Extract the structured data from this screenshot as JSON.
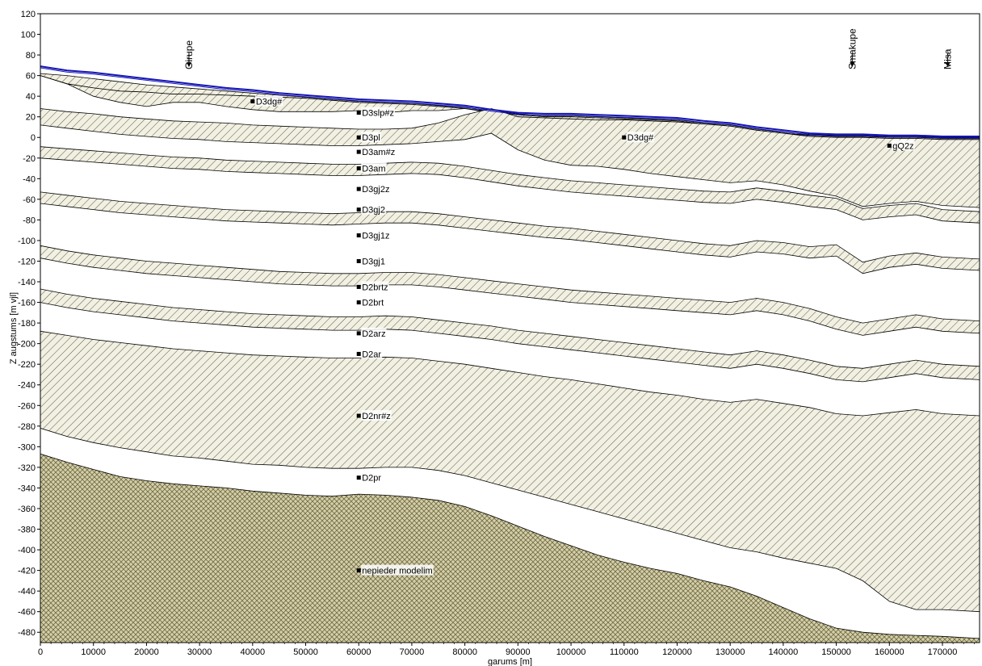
{
  "chart_data": {
    "type": "area",
    "title": "",
    "xlabel": "garums [m]",
    "ylabel": "Z augstums [m vjl]",
    "xlim": [
      0,
      177000
    ],
    "ylim": [
      -490,
      120
    ],
    "x_ticks": [
      0,
      10000,
      20000,
      30000,
      40000,
      50000,
      60000,
      70000,
      80000,
      90000,
      100000,
      110000,
      120000,
      130000,
      140000,
      150000,
      160000,
      170000
    ],
    "x_tick_labels": [
      "0",
      "10000",
      "20000",
      "30000",
      "40000",
      "50000",
      "60000",
      "70000",
      "80000",
      "90000",
      "100000",
      "110000",
      "120000",
      "130000",
      "140000",
      "150000",
      "160000",
      "170000"
    ],
    "y_ticks": [
      120,
      100,
      80,
      60,
      40,
      20,
      0,
      -20,
      -40,
      -60,
      -80,
      -100,
      -120,
      -140,
      -160,
      -180,
      -200,
      -220,
      -240,
      -260,
      -280,
      -300,
      -320,
      -340,
      -360,
      -380,
      -400,
      -420,
      -440,
      -460,
      -480
    ],
    "y_tick_labels": [
      "120",
      "100",
      "80",
      "60",
      "40",
      "20",
      "0",
      "-20",
      "-40",
      "-60",
      "-80",
      "-100",
      "-120",
      "-140",
      "-160",
      "-180",
      "-200",
      "-220",
      "-240",
      "-260",
      "-280",
      "-300",
      "-320",
      "-340",
      "-360",
      "-380",
      "-400",
      "-420",
      "-440",
      "-460",
      "-480"
    ],
    "grid": false,
    "colors": {
      "surface_line": "#1414b4",
      "layer_fill": "#f2f0e0",
      "hatch_line": "#555555",
      "crosshatch_fill": "#c6c197",
      "outline": "#000000"
    },
    "x": [
      0,
      5000,
      10000,
      15000,
      20000,
      25000,
      30000,
      35000,
      40000,
      45000,
      50000,
      55000,
      60000,
      65000,
      70000,
      75000,
      80000,
      85000,
      90000,
      95000,
      100000,
      105000,
      110000,
      115000,
      120000,
      125000,
      130000,
      135000,
      140000,
      145000,
      150000,
      155000,
      160000,
      165000,
      170000,
      177000
    ],
    "surface": {
      "name": "terrain surface",
      "values": [
        69,
        65,
        63,
        60,
        57,
        54,
        51,
        48,
        46,
        43,
        41,
        39,
        37,
        36,
        35,
        33,
        31,
        27,
        24,
        23,
        23,
        22,
        21,
        20,
        19,
        16,
        14,
        10,
        7,
        4,
        3,
        3,
        2,
        2,
        1,
        1
      ]
    },
    "hatched_layers": [
      {
        "name": "D3dg#",
        "top": [
          62,
          60,
          57,
          54,
          51,
          49,
          47,
          45,
          43,
          41,
          39,
          37,
          35,
          34,
          33,
          31,
          29,
          26,
          23,
          21,
          21,
          20,
          19,
          18,
          17,
          14,
          12,
          8,
          5,
          3,
          2,
          2,
          1,
          1,
          0,
          0
        ],
        "bottom": [
          60,
          52,
          48,
          45,
          44,
          42,
          42,
          41,
          40,
          39,
          38,
          36,
          34,
          33,
          32,
          30,
          28,
          25,
          22,
          20,
          20,
          19,
          18,
          17,
          16,
          13,
          11,
          7,
          4,
          2,
          1,
          1,
          0,
          0,
          -1,
          -1
        ]
      },
      {
        "name": "D3slp#z",
        "top": [
          60,
          52,
          48,
          45,
          44,
          42,
          42,
          41,
          40,
          39,
          38,
          36,
          34,
          33,
          32,
          30,
          28,
          25,
          22,
          20,
          20,
          19,
          18,
          17,
          16,
          13,
          11,
          7,
          4,
          2,
          1,
          1,
          0,
          0,
          -1,
          -1
        ],
        "bottom": [
          60,
          52,
          40,
          34,
          30,
          34,
          34,
          30,
          27,
          25,
          25,
          25,
          26,
          24,
          26,
          26,
          28,
          24,
          20,
          19,
          18,
          17,
          17,
          16,
          15,
          13,
          11,
          7,
          4,
          1,
          0,
          0,
          -1,
          -1,
          -2,
          -2
        ]
      },
      {
        "name": "D3pl",
        "top": [
          28,
          25,
          23,
          20,
          18,
          16,
          15,
          14,
          12,
          11,
          10,
          9,
          8,
          8,
          9,
          14,
          22,
          28,
          20,
          19,
          18,
          17,
          17,
          16,
          15,
          13,
          11,
          7,
          4,
          1,
          0,
          0,
          -1,
          -1,
          -2,
          -2
        ],
        "bottom": [
          12,
          9,
          6,
          3,
          1,
          -1,
          -2,
          -4,
          -5,
          -6,
          -7,
          -8,
          -8,
          -7,
          -6,
          -4,
          -2,
          4,
          -12,
          -22,
          -27,
          -28,
          -31,
          -35,
          -38,
          -41,
          -44,
          -42,
          -46,
          -52,
          -57,
          -67,
          -64,
          -62,
          -66,
          -68
        ]
      },
      {
        "name": "D3am#z",
        "top": [
          -9,
          -11,
          -13,
          -15,
          -17,
          -19,
          -20,
          -22,
          -23,
          -24,
          -25,
          -26,
          -26,
          -25,
          -24,
          -25,
          -28,
          -32,
          -36,
          -39,
          -42,
          -44,
          -46,
          -48,
          -50,
          -52,
          -53,
          -49,
          -52,
          -56,
          -59,
          -69,
          -66,
          -64,
          -70,
          -72
        ],
        "bottom": [
          -20,
          -22,
          -24,
          -26,
          -28,
          -30,
          -31,
          -33,
          -34,
          -35,
          -36,
          -37,
          -37,
          -36,
          -35,
          -36,
          -39,
          -43,
          -47,
          -50,
          -53,
          -55,
          -57,
          -59,
          -61,
          -63,
          -64,
          -60,
          -63,
          -67,
          -70,
          -80,
          -77,
          -75,
          -81,
          -83
        ]
      },
      {
        "name": "D3gj2z",
        "top": [
          -53,
          -56,
          -59,
          -62,
          -64,
          -66,
          -68,
          -70,
          -71,
          -72,
          -73,
          -74,
          -73,
          -72,
          -72,
          -74,
          -77,
          -80,
          -83,
          -86,
          -88,
          -91,
          -94,
          -97,
          -100,
          -103,
          -105,
          -100,
          -102,
          -106,
          -104,
          -121,
          -115,
          -112,
          -116,
          -118
        ],
        "bottom": [
          -64,
          -67,
          -70,
          -73,
          -75,
          -77,
          -79,
          -81,
          -82,
          -83,
          -84,
          -85,
          -84,
          -83,
          -83,
          -85,
          -88,
          -91,
          -94,
          -97,
          -99,
          -102,
          -105,
          -108,
          -111,
          -114,
          -116,
          -111,
          -113,
          -117,
          -115,
          -132,
          -126,
          -123,
          -127,
          -129
        ]
      },
      {
        "name": "D3gj1z",
        "top": [
          -105,
          -110,
          -114,
          -117,
          -120,
          -122,
          -124,
          -126,
          -128,
          -130,
          -131,
          -132,
          -132,
          -131,
          -131,
          -133,
          -136,
          -139,
          -142,
          -145,
          -148,
          -150,
          -152,
          -154,
          -156,
          -158,
          -160,
          -156,
          -160,
          -166,
          -174,
          -180,
          -176,
          -172,
          -176,
          -178
        ],
        "bottom": [
          -117,
          -122,
          -126,
          -129,
          -132,
          -134,
          -136,
          -138,
          -140,
          -142,
          -143,
          -144,
          -144,
          -143,
          -143,
          -145,
          -148,
          -151,
          -154,
          -157,
          -160,
          -162,
          -164,
          -166,
          -168,
          -170,
          -172,
          -168,
          -172,
          -178,
          -186,
          -192,
          -188,
          -184,
          -188,
          -190
        ]
      },
      {
        "name": "D2brtz",
        "top": [
          -147,
          -152,
          -156,
          -159,
          -162,
          -165,
          -167,
          -169,
          -171,
          -172,
          -173,
          -174,
          -174,
          -173,
          -174,
          -177,
          -180,
          -183,
          -187,
          -190,
          -193,
          -196,
          -199,
          -202,
          -205,
          -208,
          -211,
          -207,
          -211,
          -216,
          -222,
          -224,
          -220,
          -216,
          -220,
          -222
        ],
        "bottom": [
          -160,
          -165,
          -169,
          -172,
          -175,
          -178,
          -180,
          -182,
          -184,
          -185,
          -186,
          -187,
          -187,
          -186,
          -187,
          -190,
          -193,
          -196,
          -200,
          -203,
          -206,
          -209,
          -212,
          -215,
          -218,
          -221,
          -224,
          -220,
          -224,
          -229,
          -235,
          -237,
          -233,
          -229,
          -233,
          -235
        ]
      },
      {
        "name": "D2arz",
        "top": [
          -188,
          -192,
          -196,
          -199,
          -202,
          -205,
          -207,
          -209,
          -211,
          -212,
          -213,
          -214,
          -214,
          -213,
          -214,
          -217,
          -220,
          -224,
          -228,
          -232,
          -235,
          -239,
          -243,
          -247,
          -250,
          -254,
          -257,
          -254,
          -258,
          -262,
          -268,
          -270,
          -267,
          -264,
          -268,
          -270
        ],
        "bottom": [
          -282,
          -290,
          -296,
          -301,
          -305,
          -309,
          -311,
          -314,
          -317,
          -318,
          -320,
          -321,
          -321,
          -320,
          -320,
          -323,
          -328,
          -335,
          -342,
          -349,
          -356,
          -363,
          -370,
          -377,
          -384,
          -391,
          -398,
          -402,
          -408,
          -413,
          -418,
          -430,
          -450,
          -458,
          -458,
          -460
        ]
      }
    ],
    "crosshatched_layer": {
      "name": "nepieder modelim",
      "top": [
        -307,
        -315,
        -322,
        -329,
        -333,
        -336,
        -338,
        -340,
        -343,
        -345,
        -347,
        -348,
        -346,
        -347,
        -349,
        -352,
        -358,
        -367,
        -377,
        -387,
        -396,
        -405,
        -412,
        -418,
        -423,
        -430,
        -436,
        -445,
        -456,
        -467,
        -476,
        -480,
        -482,
        -483,
        -484,
        -486
      ],
      "bottom": [
        -490,
        -490,
        -490,
        -490,
        -490,
        -490,
        -490,
        -490,
        -490,
        -490,
        -490,
        -490,
        -490,
        -490,
        -490,
        -490,
        -490,
        -490,
        -490,
        -490,
        -490,
        -490,
        -490,
        -490,
        -490,
        -490,
        -490,
        -490,
        -490,
        -490,
        -490,
        -490,
        -490,
        -490,
        -490,
        -490
      ]
    },
    "layer_labels": [
      {
        "text": "D3dg#",
        "x": 40000,
        "y": 35
      },
      {
        "text": "D3slp#z",
        "x": 60000,
        "y": 24
      },
      {
        "text": "D3pl",
        "x": 60000,
        "y": 0
      },
      {
        "text": "D3dg#",
        "x": 110000,
        "y": 0
      },
      {
        "text": "gQ2z",
        "x": 160000,
        "y": -8
      },
      {
        "text": "D3am#z",
        "x": 60000,
        "y": -14
      },
      {
        "text": "D3am",
        "x": 60000,
        "y": -30
      },
      {
        "text": "D3gj2z",
        "x": 60000,
        "y": -50
      },
      {
        "text": "D3gj2",
        "x": 60000,
        "y": -70
      },
      {
        "text": "D3gj1z",
        "x": 60000,
        "y": -95
      },
      {
        "text": "D3gj1",
        "x": 60000,
        "y": -120
      },
      {
        "text": "D2brtz",
        "x": 60000,
        "y": -145
      },
      {
        "text": "D2brt",
        "x": 60000,
        "y": -160
      },
      {
        "text": "D2arz",
        "x": 60000,
        "y": -190
      },
      {
        "text": "D2ar",
        "x": 60000,
        "y": -210
      },
      {
        "text": "D2nr#z",
        "x": 60000,
        "y": -270
      },
      {
        "text": "D2pr",
        "x": 60000,
        "y": -330
      },
      {
        "text": "nepieder modelim",
        "x": 60000,
        "y": -420
      }
    ],
    "place_markers": [
      {
        "text": "Girupe",
        "x": 28000
      },
      {
        "text": "Smakupe",
        "x": 153000
      },
      {
        "text": "Misa",
        "x": 171000
      }
    ]
  }
}
